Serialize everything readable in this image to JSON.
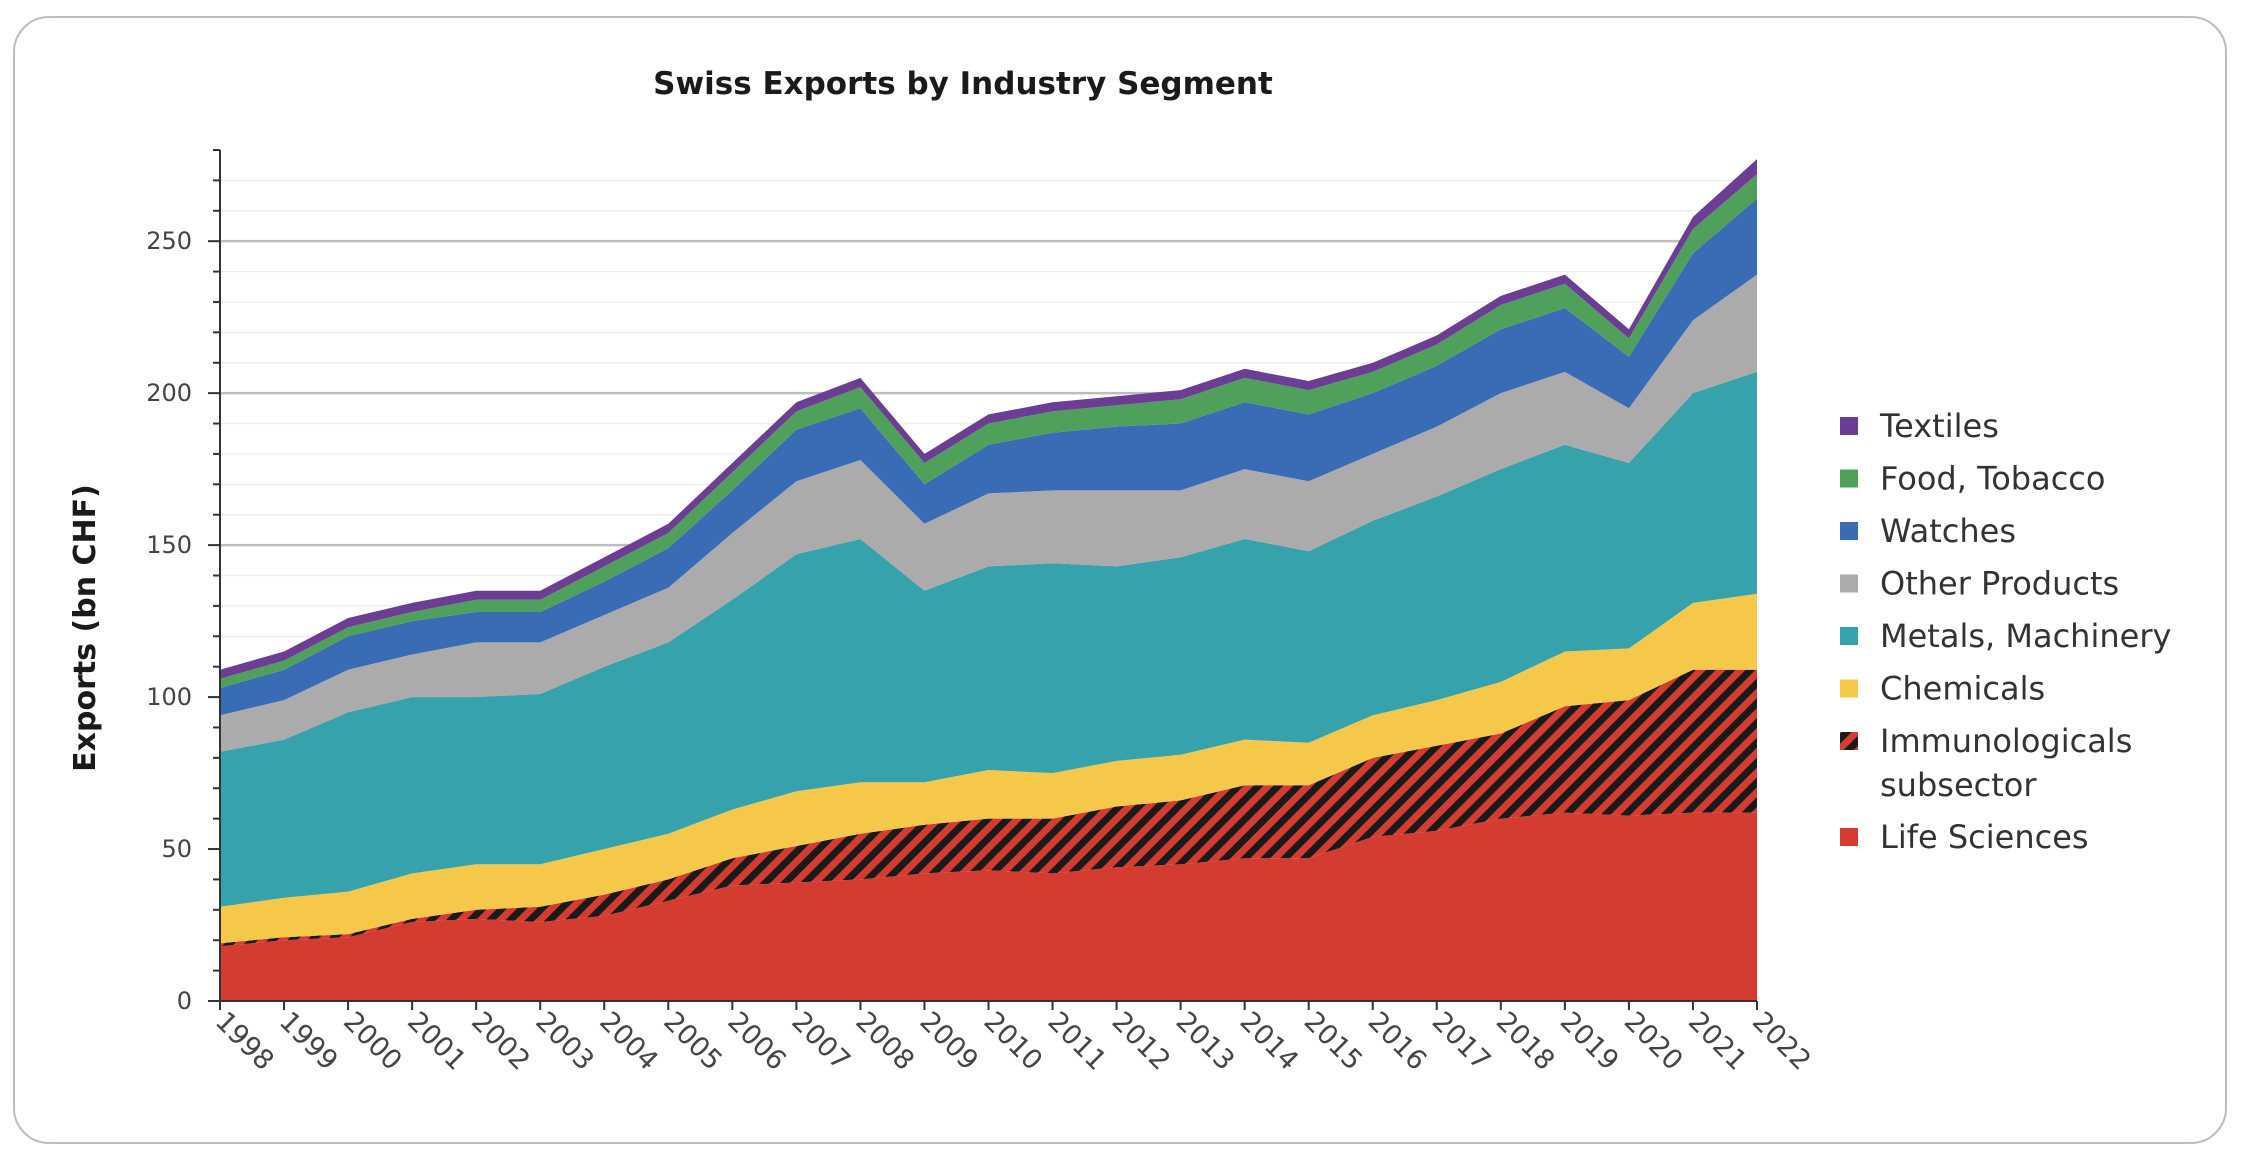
{
  "chart_data": {
    "type": "area",
    "stacked": true,
    "title": "Swiss Exports by Industry Segment",
    "xlabel": "",
    "ylabel": "Exports (bn CHF)",
    "ylim": [
      0,
      280
    ],
    "yticks": [
      0,
      50,
      100,
      150,
      200,
      250
    ],
    "grid": "horizontal",
    "legend_position": "right",
    "x": [
      "1998",
      "1999",
      "2000",
      "2001",
      "2002",
      "2003",
      "2004",
      "2005",
      "2006",
      "2007",
      "2008",
      "2009",
      "2010",
      "2011",
      "2012",
      "2013",
      "2014",
      "2015",
      "2016",
      "2017",
      "2018",
      "2019",
      "2020",
      "2021",
      "2022"
    ],
    "series": [
      {
        "name": "Life Sciences",
        "color": "#d43c31",
        "values": [
          18,
          20,
          21,
          26,
          27,
          26,
          28,
          33,
          38,
          39,
          40,
          42,
          43,
          42,
          44,
          45,
          47,
          47,
          54,
          56,
          60,
          62,
          61,
          62,
          62
        ]
      },
      {
        "name": "Immunologicals subsector",
        "color": "#d43c31",
        "pattern": "hatch-black",
        "values": [
          1,
          1,
          1,
          1,
          3,
          5,
          7,
          7,
          9,
          12,
          15,
          16,
          17,
          18,
          20,
          21,
          24,
          24,
          26,
          28,
          28,
          35,
          38,
          47,
          47
        ]
      },
      {
        "name": "Chemicals",
        "color": "#f5c84a",
        "values": [
          12,
          13,
          14,
          15,
          15,
          14,
          15,
          15,
          16,
          18,
          17,
          14,
          16,
          15,
          15,
          15,
          15,
          14,
          14,
          15,
          17,
          18,
          17,
          22,
          25
        ]
      },
      {
        "name": "Metals, Machinery",
        "color": "#36a2ab",
        "values": [
          51,
          52,
          59,
          58,
          55,
          56,
          60,
          63,
          69,
          78,
          80,
          63,
          67,
          69,
          64,
          65,
          66,
          63,
          64,
          67,
          70,
          68,
          61,
          69,
          73
        ]
      },
      {
        "name": "Other Products",
        "color": "#ababab",
        "values": [
          12,
          13,
          14,
          14,
          18,
          17,
          17,
          18,
          22,
          24,
          26,
          22,
          24,
          24,
          25,
          22,
          23,
          23,
          22,
          23,
          25,
          24,
          18,
          24,
          32
        ]
      },
      {
        "name": "Watches",
        "color": "#3a6cb5",
        "values": [
          9,
          10,
          11,
          11,
          10,
          10,
          11,
          13,
          14,
          17,
          17,
          13,
          16,
          19,
          21,
          22,
          22,
          22,
          20,
          20,
          21,
          21,
          17,
          22,
          25
        ]
      },
      {
        "name": "Food, Tobacco",
        "color": "#4fa05a",
        "values": [
          3,
          3,
          3,
          3,
          4,
          4,
          5,
          5,
          6,
          6,
          7,
          7,
          7,
          7,
          7,
          8,
          8,
          8,
          7,
          7,
          8,
          8,
          6,
          8,
          8
        ]
      },
      {
        "name": "Textiles",
        "color": "#6b3e93",
        "values": [
          3,
          3,
          3,
          3,
          3,
          3,
          3,
          3,
          3,
          3,
          3,
          3,
          3,
          3,
          3,
          3,
          3,
          3,
          3,
          3,
          3,
          3,
          3,
          4,
          5
        ]
      }
    ],
    "legend": [
      "Textiles",
      "Food, Tobacco",
      "Watches",
      "Other Products",
      "Metals, Machinery",
      "Chemicals",
      "Immunologicals subsector",
      "Life Sciences"
    ]
  }
}
